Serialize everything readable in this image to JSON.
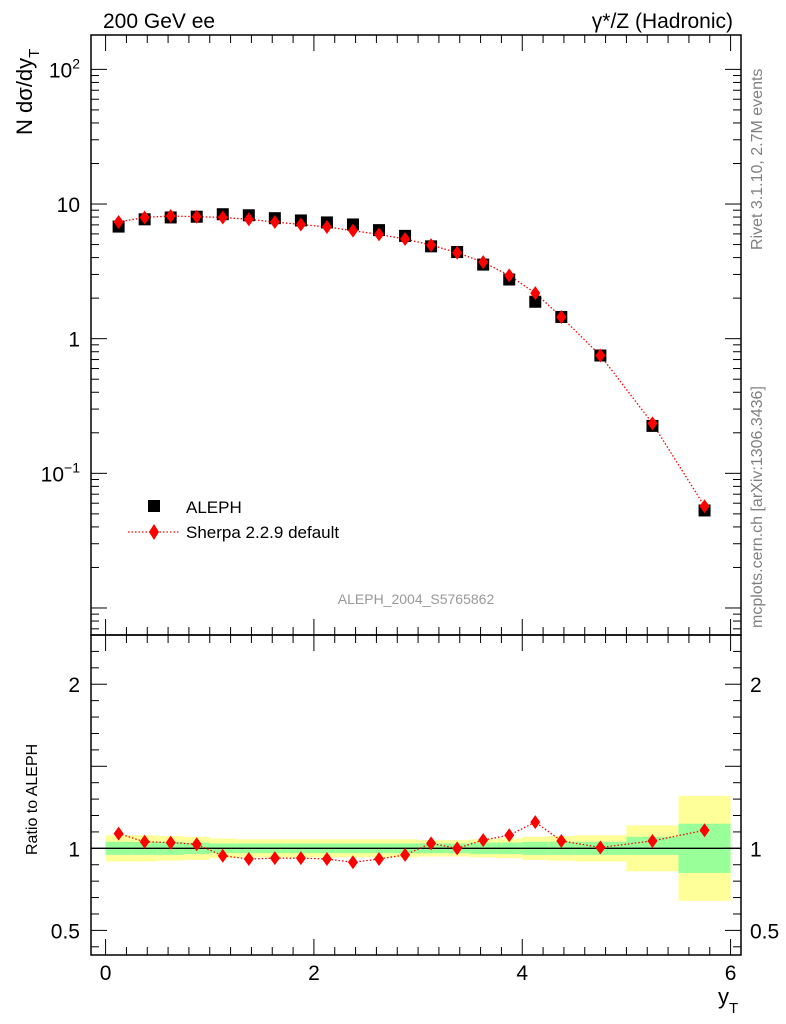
{
  "header": {
    "left_title": "200 GeV ee",
    "right_title_prefix": "γ*/Z",
    "right_title_suffix": " (Hadronic)"
  },
  "side_labels": {
    "rivet": "Rivet 3.1.10,  2.7M events",
    "mcplots": "mcplots.cern.ch [arXiv:1306.3436]"
  },
  "analysis_tag": "ALEPH_2004_S5765862",
  "colors": {
    "data": "#000000",
    "mc": "#ff0000",
    "band_inner": "#99ff99",
    "band_outer": "#ffff99",
    "analysis_tag": "#999999",
    "side_labels": "#808080"
  },
  "chart_data": [
    {
      "type": "scatter",
      "panel": "main",
      "ylabel_main": "N dσ/dy",
      "ylabel_sub": "T",
      "yscale": "log",
      "ylim": [
        0.0063,
        180
      ],
      "xlim": [
        -0.14,
        6.1
      ],
      "y_tick_labels": [
        {
          "value": 0.1,
          "base": "10",
          "exp": "−1"
        },
        {
          "value": 1,
          "base": "1",
          "exp": ""
        },
        {
          "value": 10,
          "base": "10",
          "exp": ""
        },
        {
          "value": 100,
          "base": "10",
          "exp": "2"
        }
      ],
      "legend_position": "lower-left",
      "series": [
        {
          "name": "ALEPH",
          "marker": "square",
          "x": [
            0.125,
            0.375,
            0.625,
            0.875,
            1.125,
            1.375,
            1.625,
            1.875,
            2.125,
            2.375,
            2.625,
            2.875,
            3.125,
            3.375,
            3.625,
            3.875,
            4.125,
            4.375,
            4.75,
            5.25,
            5.75
          ],
          "y": [
            6.8,
            7.7,
            7.95,
            8.05,
            8.4,
            8.25,
            7.85,
            7.55,
            7.3,
            7.05,
            6.4,
            5.8,
            4.85,
            4.4,
            3.55,
            2.75,
            1.88,
            1.45,
            0.75,
            0.225,
            0.053
          ]
        },
        {
          "name": "Sherpa 2.2.9 default",
          "marker": "diamond",
          "line": "dotted",
          "x": [
            0.125,
            0.375,
            0.625,
            0.875,
            1.125,
            1.375,
            1.625,
            1.875,
            2.125,
            2.375,
            2.625,
            2.875,
            3.125,
            3.375,
            3.625,
            3.875,
            4.125,
            4.375,
            4.75,
            5.25,
            5.75
          ],
          "y": [
            7.35,
            7.95,
            8.15,
            8.05,
            7.95,
            7.7,
            7.35,
            7.05,
            6.75,
            6.35,
            5.95,
            5.5,
            4.95,
            4.35,
            3.7,
            2.95,
            2.18,
            1.45,
            0.75,
            0.235,
            0.057
          ]
        }
      ]
    },
    {
      "type": "line",
      "panel": "ratio",
      "ylabel": "Ratio to ALEPH",
      "xlabel_main": "y",
      "xlabel_sub": "T",
      "ylim": [
        0.35,
        2.3
      ],
      "xlim": [
        -0.14,
        6.1
      ],
      "x_ticks": [
        0,
        2,
        4,
        6
      ],
      "y_ticks": [
        0.5,
        1,
        2
      ],
      "bands": {
        "x_edges": [
          0.0,
          0.25,
          0.5,
          0.75,
          1.0,
          1.25,
          1.5,
          1.75,
          2.0,
          2.25,
          2.5,
          2.75,
          3.0,
          3.25,
          3.5,
          3.75,
          4.0,
          4.25,
          4.5,
          5.0,
          5.5,
          6.0
        ],
        "inner_lo": [
          0.96,
          0.96,
          0.96,
          0.965,
          0.97,
          0.97,
          0.97,
          0.97,
          0.97,
          0.97,
          0.97,
          0.97,
          0.97,
          0.97,
          0.965,
          0.965,
          0.96,
          0.96,
          0.96,
          0.96,
          0.85
        ],
        "inner_hi": [
          1.04,
          1.04,
          1.04,
          1.035,
          1.03,
          1.03,
          1.03,
          1.03,
          1.03,
          1.03,
          1.03,
          1.03,
          1.03,
          1.03,
          1.035,
          1.035,
          1.04,
          1.04,
          1.04,
          1.07,
          1.15
        ],
        "outer_lo": [
          0.92,
          0.92,
          0.925,
          0.93,
          0.94,
          0.945,
          0.945,
          0.945,
          0.945,
          0.945,
          0.945,
          0.945,
          0.95,
          0.95,
          0.945,
          0.94,
          0.93,
          0.925,
          0.92,
          0.86,
          0.68
        ],
        "outer_hi": [
          1.08,
          1.08,
          1.075,
          1.07,
          1.06,
          1.055,
          1.055,
          1.055,
          1.055,
          1.055,
          1.055,
          1.055,
          1.05,
          1.05,
          1.055,
          1.06,
          1.07,
          1.075,
          1.08,
          1.14,
          1.32
        ]
      },
      "series": [
        {
          "name": "Sherpa 2.2.9 default",
          "x": [
            0.125,
            0.375,
            0.625,
            0.875,
            1.125,
            1.375,
            1.625,
            1.875,
            2.125,
            2.375,
            2.625,
            2.875,
            3.125,
            3.375,
            3.625,
            3.875,
            4.125,
            4.375,
            4.75,
            5.25,
            5.75
          ],
          "y": [
            1.09,
            1.04,
            1.035,
            1.025,
            0.955,
            0.935,
            0.94,
            0.94,
            0.935,
            0.915,
            0.935,
            0.96,
            1.03,
            1.0,
            1.05,
            1.08,
            1.16,
            1.045,
            1.005,
            1.045,
            1.11
          ]
        }
      ]
    }
  ]
}
